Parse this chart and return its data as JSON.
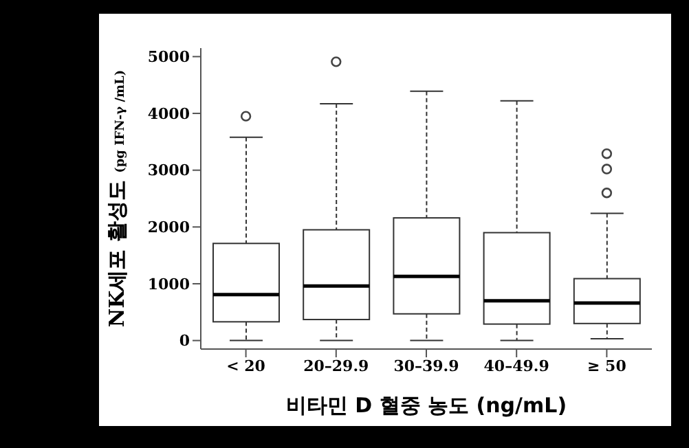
{
  "chart_data": {
    "type": "box",
    "categories": [
      "< 20",
      "20–29.9",
      "30–39.9",
      "40–49.9",
      "≥ 50"
    ],
    "xlabel": "비타민 D 혈중 농도 (ng/mL)",
    "ylabel": "NK세포 활성도 (pg IFN-γ /mL)",
    "ylim": [
      -150,
      5150
    ],
    "yticks": [
      0,
      1000,
      2000,
      3000,
      4000,
      5000
    ],
    "grid": false,
    "legend": false,
    "boxes": [
      {
        "low": 0,
        "q1": 330,
        "median": 810,
        "q3": 1710,
        "high": 3580,
        "outliers": [
          3950
        ]
      },
      {
        "low": 0,
        "q1": 370,
        "median": 960,
        "q3": 1950,
        "high": 4170,
        "outliers": [
          4910
        ]
      },
      {
        "low": 0,
        "q1": 470,
        "median": 1130,
        "q3": 2160,
        "high": 4390
      },
      {
        "low": 0,
        "q1": 290,
        "median": 700,
        "q3": 1900,
        "high": 4220
      },
      {
        "low": 30,
        "q1": 300,
        "median": 660,
        "q3": 1090,
        "high": 2240,
        "outliers": [
          2600,
          3020,
          3290
        ]
      }
    ]
  }
}
